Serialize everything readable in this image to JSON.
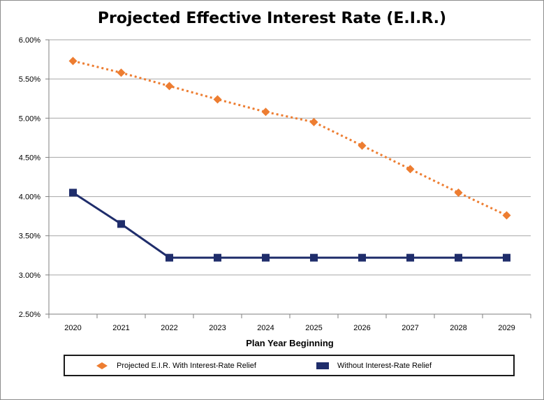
{
  "chart_data": {
    "type": "line",
    "title": "Projected Effective Interest Rate (E.I.R.)",
    "xlabel": "Plan Year Beginning",
    "ylabel": "",
    "ylim": [
      2.5,
      6.0
    ],
    "yticks": [
      "2.50%",
      "3.00%",
      "3.50%",
      "4.00%",
      "4.50%",
      "5.00%",
      "5.50%",
      "6.00%"
    ],
    "ytick_values": [
      2.5,
      3.0,
      3.5,
      4.0,
      4.5,
      5.0,
      5.5,
      6.0
    ],
    "categories": [
      "2020",
      "2021",
      "2022",
      "2023",
      "2024",
      "2025",
      "2026",
      "2027",
      "2028",
      "2029"
    ],
    "grid": true,
    "legend_position": "bottom",
    "series": [
      {
        "name": "Projected E.I.R. With Interest-Rate Relief",
        "values": [
          5.73,
          5.58,
          5.41,
          5.24,
          5.08,
          4.95,
          4.65,
          4.35,
          4.05,
          3.76
        ],
        "color": "#ED7D31",
        "marker": "diamond",
        "line_style": "dotted"
      },
      {
        "name": "Without Interest-Rate Relief",
        "values": [
          4.05,
          3.65,
          3.22,
          3.22,
          3.22,
          3.22,
          3.22,
          3.22,
          3.22,
          3.22
        ],
        "color": "#1F2D6B",
        "marker": "square",
        "line_style": "solid"
      }
    ]
  }
}
